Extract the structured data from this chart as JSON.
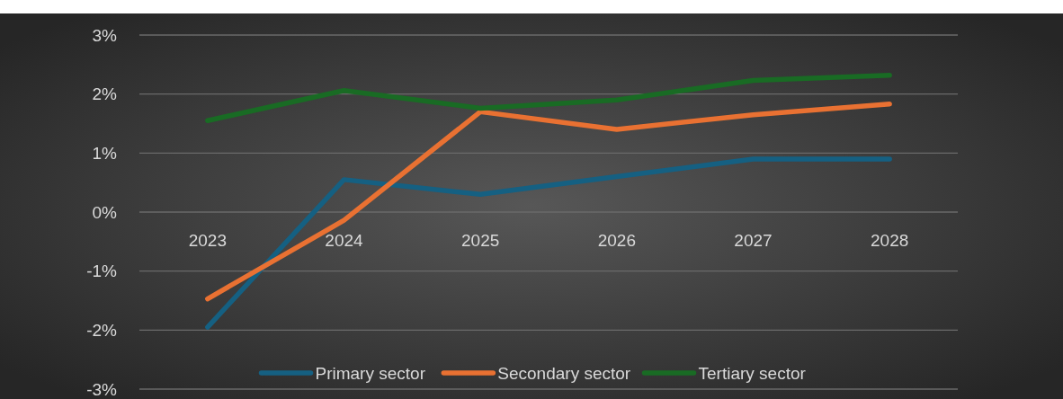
{
  "chart_data": {
    "type": "line",
    "categories": [
      "2023",
      "2024",
      "2025",
      "2026",
      "2027",
      "2028"
    ],
    "series": [
      {
        "name": "Primary sector",
        "color": "#156082",
        "values": [
          -1.95,
          0.55,
          0.3,
          0.6,
          0.9,
          0.9
        ]
      },
      {
        "name": "Secondary sector",
        "color": "#e97132",
        "values": [
          -1.47,
          -0.14,
          1.7,
          1.4,
          1.65,
          1.83
        ]
      },
      {
        "name": "Tertiary sector",
        "color": "#196b24",
        "values": [
          1.55,
          2.06,
          1.76,
          1.9,
          2.23,
          2.32
        ]
      }
    ],
    "ylim": [
      -3,
      3
    ],
    "yticks": [
      {
        "value": -3,
        "label": "-3%"
      },
      {
        "value": -2,
        "label": "-2%"
      },
      {
        "value": -1,
        "label": "-1%"
      },
      {
        "value": 0,
        "label": "0%"
      },
      {
        "value": 1,
        "label": "1%"
      },
      {
        "value": 2,
        "label": "2%"
      },
      {
        "value": 3,
        "label": "3%"
      }
    ],
    "grid": "y",
    "legend": "bottom",
    "marker": "none",
    "line_style": "solid"
  }
}
